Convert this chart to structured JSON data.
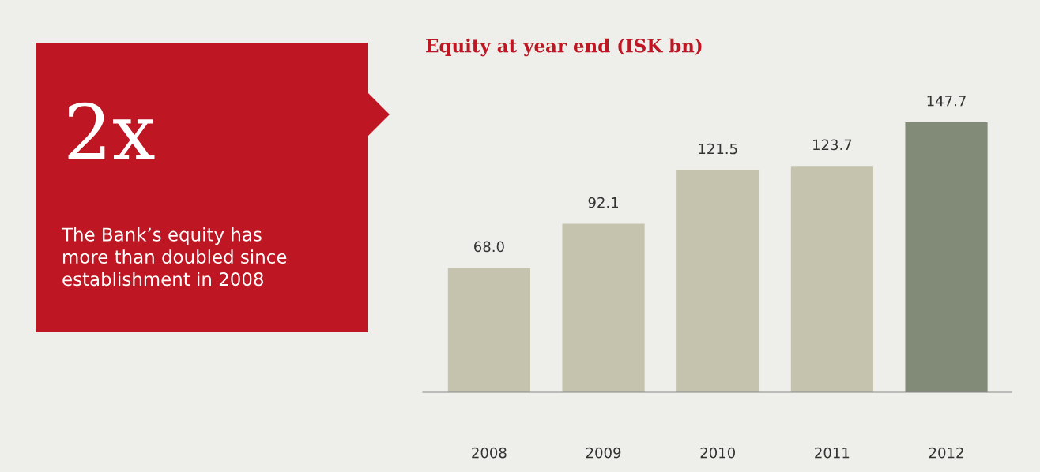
{
  "chart_data": [
    {
      "type": "other",
      "title": "2x",
      "annotations": [
        "The Bank’s equity has\nmore than doubled since\nestablishment in 2008"
      ],
      "color": "#be1622"
    },
    {
      "type": "bar",
      "title": "Equity at year end (ISK bn)",
      "categories": [
        "2008",
        "2009",
        "2010",
        "2011",
        "2012"
      ],
      "values": [
        68.0,
        92.1,
        121.5,
        123.7,
        147.7
      ],
      "value_labels": [
        "68.0",
        "92.1",
        "121.5",
        "123.7",
        "147.7"
      ],
      "colors": [
        "#c5c3ad",
        "#c5c3ad",
        "#c5c3ad",
        "#c5c3ad",
        "#818b77"
      ]
    }
  ]
}
